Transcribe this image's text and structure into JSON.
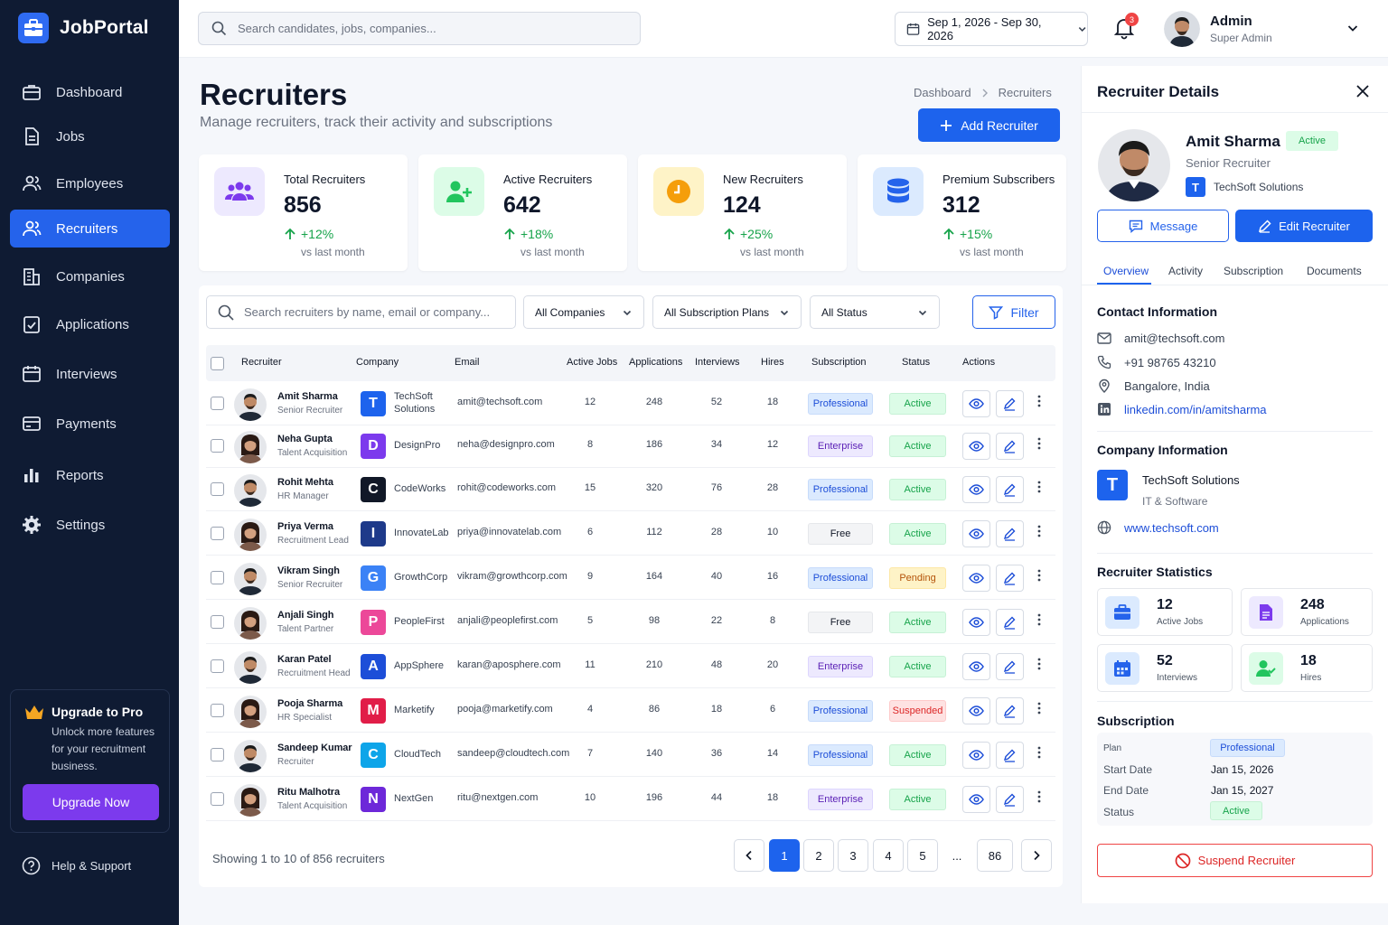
{
  "app": {
    "name": "JobPortal"
  },
  "sidebar": {
    "items": [
      {
        "label": "Dashboard",
        "icon": "briefcase-icon"
      },
      {
        "label": "Jobs",
        "icon": "document-icon"
      },
      {
        "label": "Employees",
        "icon": "users-icon"
      },
      {
        "label": "Recruiters",
        "icon": "users-icon",
        "active": true
      },
      {
        "label": "Companies",
        "icon": "building-icon"
      },
      {
        "label": "Applications",
        "icon": "checklist-icon"
      },
      {
        "label": "Interviews",
        "icon": "calendar-icon"
      },
      {
        "label": "Payments",
        "icon": "card-icon"
      },
      {
        "label": "Reports",
        "icon": "bar-chart-icon"
      },
      {
        "label": "Settings",
        "icon": "gear-icon"
      }
    ],
    "promo": {
      "title": "Upgrade to Pro",
      "text": "Unlock more features for your recruitment business.",
      "button": "Upgrade Now"
    },
    "help": "Help & Support"
  },
  "topbar": {
    "search_placeholder": "Search candidates, jobs, companies...",
    "date_range": "Sep 1, 2026 - Sep 30, 2026",
    "notifications": "3",
    "user_name": "Admin",
    "user_role": "Super Admin"
  },
  "header": {
    "title": "Recruiters",
    "subtitle": "Manage recruiters, track their activity and subscriptions",
    "breadcrumb": [
      "Dashboard",
      "Recruiters"
    ],
    "add_button": "Add Recruiter"
  },
  "stats": [
    {
      "label": "Total Recruiters",
      "value": "856",
      "change": "+12%",
      "period": "vs last month",
      "color": "#7c3aed"
    },
    {
      "label": "Active Recruiters",
      "value": "642",
      "change": "+18%",
      "period": "vs last month",
      "color": "#22c55e"
    },
    {
      "label": "New Recruiters",
      "value": "124",
      "change": "+25%",
      "period": "vs last month",
      "color": "#f59e0b"
    },
    {
      "label": "Premium Subscribers",
      "value": "312",
      "change": "+15%",
      "period": "vs last month",
      "color": "#2563eb"
    }
  ],
  "filters": {
    "search_placeholder": "Search recruiters by name, email or company...",
    "company": "All Companies",
    "plan": "All Subscription Plans",
    "status": "All Status",
    "filter_button": "Filter"
  },
  "table": {
    "columns": [
      "Recruiter",
      "Company",
      "Email",
      "Active Jobs",
      "Applications",
      "Interviews",
      "Hires",
      "Subscription",
      "Status",
      "Actions"
    ],
    "rows": [
      {
        "name": "Amit Sharma",
        "role": "Senior Recruiter",
        "company": "TechSoft Solutions",
        "logo": "T",
        "logo_color": "#1d63ed",
        "email": "amit@techsoft.com",
        "jobs": "12",
        "apps": "248",
        "interviews": "52",
        "hires": "18",
        "plan": "Professional",
        "status": "Active",
        "gender": "m"
      },
      {
        "name": "Neha Gupta",
        "role": "Talent Acquisition",
        "company": "DesignPro",
        "logo": "D",
        "logo_color": "#7c3aed",
        "email": "neha@designpro.com",
        "jobs": "8",
        "apps": "186",
        "interviews": "34",
        "hires": "12",
        "plan": "Enterprise",
        "status": "Active",
        "gender": "f"
      },
      {
        "name": "Rohit Mehta",
        "role": "HR Manager",
        "company": "CodeWorks",
        "logo": "C",
        "logo_color": "#111827",
        "email": "rohit@codeworks.com",
        "jobs": "15",
        "apps": "320",
        "interviews": "76",
        "hires": "28",
        "plan": "Professional",
        "status": "Active",
        "gender": "m"
      },
      {
        "name": "Priya Verma",
        "role": "Recruitment Lead",
        "company": "InnovateLab",
        "logo": "I",
        "logo_color": "#1e3a8a",
        "email": "priya@innovatelab.com",
        "jobs": "6",
        "apps": "112",
        "interviews": "28",
        "hires": "10",
        "plan": "Free",
        "status": "Active",
        "gender": "f"
      },
      {
        "name": "Vikram Singh",
        "role": "Senior Recruiter",
        "company": "GrowthCorp",
        "logo": "G",
        "logo_color": "#3b82f6",
        "email": "vikram@growthcorp.com",
        "jobs": "9",
        "apps": "164",
        "interviews": "40",
        "hires": "16",
        "plan": "Professional",
        "status": "Pending",
        "gender": "m"
      },
      {
        "name": "Anjali Singh",
        "role": "Talent Partner",
        "company": "PeopleFirst",
        "logo": "P",
        "logo_color": "#ec4899",
        "email": "anjali@peoplefirst.com",
        "jobs": "5",
        "apps": "98",
        "interviews": "22",
        "hires": "8",
        "plan": "Free",
        "status": "Active",
        "gender": "f"
      },
      {
        "name": "Karan Patel",
        "role": "Recruitment Head",
        "company": "AppSphere",
        "logo": "A",
        "logo_color": "#1d4ed8",
        "email": "karan@aposphere.com",
        "jobs": "11",
        "apps": "210",
        "interviews": "48",
        "hires": "20",
        "plan": "Enterprise",
        "status": "Active",
        "gender": "m"
      },
      {
        "name": "Pooja Sharma",
        "role": "HR Specialist",
        "company": "Marketify",
        "logo": "M",
        "logo_color": "#e11d48",
        "email": "pooja@marketify.com",
        "jobs": "4",
        "apps": "86",
        "interviews": "18",
        "hires": "6",
        "plan": "Professional",
        "status": "Suspended",
        "gender": "f"
      },
      {
        "name": "Sandeep Kumar",
        "role": "Recruiter",
        "company": "CloudTech",
        "logo": "C",
        "logo_color": "#0ea5e9",
        "email": "sandeep@cloudtech.com",
        "jobs": "7",
        "apps": "140",
        "interviews": "36",
        "hires": "14",
        "plan": "Professional",
        "status": "Active",
        "gender": "m"
      },
      {
        "name": "Ritu Malhotra",
        "role": "Talent Acquisition",
        "company": "NextGen",
        "logo": "N",
        "logo_color": "#6d28d9",
        "email": "ritu@nextgen.com",
        "jobs": "10",
        "apps": "196",
        "interviews": "44",
        "hires": "18",
        "plan": "Enterprise",
        "status": "Active",
        "gender": "f"
      }
    ],
    "footer": "Showing 1 to 10 of 856 recruiters",
    "pages": [
      "1",
      "2",
      "3",
      "4",
      "5",
      "...",
      "86"
    ]
  },
  "details": {
    "title": "Recruiter Details",
    "name": "Amit Sharma",
    "status": "Active",
    "role": "Senior Recruiter",
    "company": "TechSoft Solutions",
    "company_logo": "T",
    "message_button": "Message",
    "edit_button": "Edit Recruiter",
    "tabs": [
      "Overview",
      "Activity",
      "Subscription",
      "Documents"
    ],
    "contact_title": "Contact Information",
    "email": "amit@techsoft.com",
    "phone": "+91 98765 43210",
    "location": "Bangalore, India",
    "linkedin": "linkedin.com/in/amitsharma",
    "company_title": "Company Information",
    "company_name": "TechSoft Solutions",
    "company_industry": "IT & Software",
    "website": "www.techsoft.com",
    "stats_title": "Recruiter Statistics",
    "stats": [
      {
        "value": "12",
        "label": "Active Jobs"
      },
      {
        "value": "248",
        "label": "Applications"
      },
      {
        "value": "52",
        "label": "Interviews"
      },
      {
        "value": "18",
        "label": "Hires"
      }
    ],
    "subscription_title": "Subscription",
    "sub": {
      "plan_label": "Plan",
      "plan": "Professional",
      "start_label": "Start Date",
      "start": "Jan 15, 2026",
      "end_label": "End Date",
      "end": "Jan 15, 2027",
      "status_label": "Status",
      "status": "Active"
    },
    "suspend_button": "Suspend Recruiter"
  }
}
